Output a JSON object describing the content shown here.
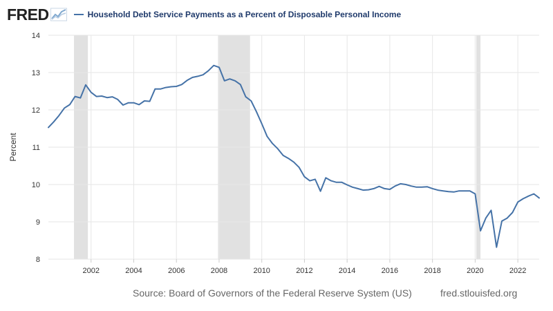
{
  "header": {
    "logo_text": "FRED",
    "logo_icon": "trend-chart-icon"
  },
  "footer": {
    "source": "Source: Board of Governors of the Federal Reserve System (US)",
    "site": "fred.stlouisfed.org"
  },
  "colors": {
    "series": "#4572a7",
    "recession": "#e1e1e1",
    "grid": "#e6e6e6",
    "legend_text": "#1f3a6b"
  },
  "chart_data": {
    "type": "line",
    "title": "",
    "xlabel": "",
    "ylabel": "Percent",
    "ylim": [
      8,
      14
    ],
    "yticks": [
      8,
      9,
      10,
      11,
      12,
      13,
      14
    ],
    "xlim": [
      2000.0,
      2023.0
    ],
    "xticks": [
      2002,
      2004,
      2006,
      2008,
      2010,
      2012,
      2014,
      2016,
      2018,
      2020,
      2022
    ],
    "grid": true,
    "legend": "top-left",
    "recessions": [
      [
        2001.2,
        2001.85
      ],
      [
        2007.95,
        2009.45
      ],
      [
        2020.05,
        2020.25
      ]
    ],
    "series": [
      {
        "name": "Household Debt Service Payments as a Percent of Disposable Personal Income",
        "points": [
          [
            2000.0,
            11.53
          ],
          [
            2000.25,
            11.68
          ],
          [
            2000.5,
            11.85
          ],
          [
            2000.75,
            12.05
          ],
          [
            2001.0,
            12.14
          ],
          [
            2001.25,
            12.36
          ],
          [
            2001.5,
            12.32
          ],
          [
            2001.75,
            12.67
          ],
          [
            2002.0,
            12.47
          ],
          [
            2002.25,
            12.36
          ],
          [
            2002.5,
            12.37
          ],
          [
            2002.75,
            12.33
          ],
          [
            2003.0,
            12.35
          ],
          [
            2003.25,
            12.28
          ],
          [
            2003.5,
            12.13
          ],
          [
            2003.75,
            12.19
          ],
          [
            2004.0,
            12.19
          ],
          [
            2004.25,
            12.14
          ],
          [
            2004.5,
            12.24
          ],
          [
            2004.75,
            12.23
          ],
          [
            2005.0,
            12.56
          ],
          [
            2005.25,
            12.56
          ],
          [
            2005.5,
            12.6
          ],
          [
            2005.75,
            12.62
          ],
          [
            2006.0,
            12.63
          ],
          [
            2006.25,
            12.68
          ],
          [
            2006.5,
            12.79
          ],
          [
            2006.75,
            12.87
          ],
          [
            2007.0,
            12.9
          ],
          [
            2007.25,
            12.94
          ],
          [
            2007.5,
            13.05
          ],
          [
            2007.75,
            13.19
          ],
          [
            2008.0,
            13.14
          ],
          [
            2008.25,
            12.78
          ],
          [
            2008.5,
            12.83
          ],
          [
            2008.75,
            12.78
          ],
          [
            2009.0,
            12.68
          ],
          [
            2009.25,
            12.35
          ],
          [
            2009.5,
            12.24
          ],
          [
            2009.75,
            11.95
          ],
          [
            2010.0,
            11.63
          ],
          [
            2010.25,
            11.29
          ],
          [
            2010.5,
            11.1
          ],
          [
            2010.75,
            10.96
          ],
          [
            2011.0,
            10.78
          ],
          [
            2011.25,
            10.7
          ],
          [
            2011.5,
            10.6
          ],
          [
            2011.75,
            10.46
          ],
          [
            2012.0,
            10.21
          ],
          [
            2012.25,
            10.1
          ],
          [
            2012.5,
            10.14
          ],
          [
            2012.75,
            9.82
          ],
          [
            2013.0,
            10.18
          ],
          [
            2013.25,
            10.1
          ],
          [
            2013.5,
            10.06
          ],
          [
            2013.75,
            10.06
          ],
          [
            2014.0,
            9.99
          ],
          [
            2014.25,
            9.93
          ],
          [
            2014.5,
            9.89
          ],
          [
            2014.75,
            9.85
          ],
          [
            2015.0,
            9.86
          ],
          [
            2015.25,
            9.89
          ],
          [
            2015.5,
            9.95
          ],
          [
            2015.75,
            9.89
          ],
          [
            2016.0,
            9.87
          ],
          [
            2016.25,
            9.96
          ],
          [
            2016.5,
            10.02
          ],
          [
            2016.75,
            10.0
          ],
          [
            2017.0,
            9.96
          ],
          [
            2017.25,
            9.93
          ],
          [
            2017.5,
            9.93
          ],
          [
            2017.75,
            9.94
          ],
          [
            2018.0,
            9.89
          ],
          [
            2018.25,
            9.85
          ],
          [
            2018.5,
            9.83
          ],
          [
            2018.75,
            9.81
          ],
          [
            2019.0,
            9.8
          ],
          [
            2019.25,
            9.83
          ],
          [
            2019.5,
            9.83
          ],
          [
            2019.75,
            9.83
          ],
          [
            2020.0,
            9.75
          ],
          [
            2020.25,
            8.76
          ],
          [
            2020.5,
            9.1
          ],
          [
            2020.75,
            9.31
          ],
          [
            2021.0,
            8.32
          ],
          [
            2021.25,
            9.02
          ],
          [
            2021.5,
            9.1
          ],
          [
            2021.75,
            9.25
          ],
          [
            2022.0,
            9.53
          ],
          [
            2022.25,
            9.62
          ],
          [
            2022.5,
            9.69
          ],
          [
            2022.75,
            9.75
          ],
          [
            2023.0,
            9.64
          ]
        ]
      }
    ]
  }
}
